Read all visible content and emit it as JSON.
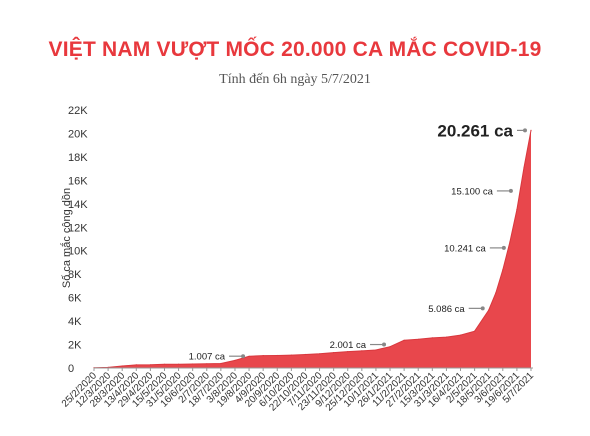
{
  "header": {
    "title": "VIỆT NAM VƯỢT MỐC 20.000 CA MẮC COVID-19",
    "subtitle": "Tính đến 6h ngày 5/7/2021"
  },
  "chart_data": {
    "type": "area",
    "title": "VIỆT NAM VƯỢT MỐC 20.000 CA MẮC COVID-19",
    "subtitle": "Tính đến 6h ngày 5/7/2021",
    "ylabel": "Số ca mắc cộng dồn",
    "xlabel": "",
    "ylim": [
      0,
      22000
    ],
    "y_ticks": [
      0,
      2000,
      4000,
      6000,
      8000,
      10000,
      12000,
      14000,
      16000,
      18000,
      20000,
      22000
    ],
    "y_tick_labels": [
      "0",
      "2K",
      "4K",
      "6K",
      "8K",
      "10K",
      "12K",
      "14K",
      "16K",
      "18K",
      "20K",
      "22K"
    ],
    "grid": false,
    "color": "#e8474c",
    "x_tick_labels": [
      "25/2/2020",
      "12/3/2020",
      "28/3/2020",
      "13/4/2020",
      "29/4/2020",
      "15/5/2020",
      "31/5/2020",
      "16/6/2020",
      "2/7/2020",
      "18/7/2020",
      "3/8/2020",
      "19/8/2020",
      "4/9/2020",
      "20/9/2020",
      "6/10/2020",
      "22/10/2020",
      "7/11/2020",
      "23/11/2020",
      "9/12/2020",
      "25/12/2020",
      "10/1/2021",
      "26/1/2021",
      "11/2/2021",
      "27/2/2021",
      "15/3/2021",
      "31/3/2021",
      "16/4/2021",
      "2/5/2021",
      "18/5/2021",
      "3/6/2021",
      "19/6/2021",
      "5/7/2021"
    ],
    "x": [
      "25/2/2020",
      "12/3/2020",
      "28/3/2020",
      "13/4/2020",
      "29/4/2020",
      "15/5/2020",
      "31/5/2020",
      "16/6/2020",
      "2/7/2020",
      "18/7/2020",
      "3/8/2020",
      "19/8/2020",
      "4/9/2020",
      "20/9/2020",
      "6/10/2020",
      "22/10/2020",
      "7/11/2020",
      "23/11/2020",
      "9/12/2020",
      "25/12/2020",
      "10/1/2021",
      "26/1/2021",
      "11/2/2021",
      "27/2/2021",
      "15/3/2021",
      "31/3/2021",
      "16/4/2021",
      "2/5/2021",
      "18/5/2021",
      "26/5/2021",
      "3/6/2021",
      "11/6/2021",
      "19/6/2021",
      "27/6/2021",
      "5/7/2021"
    ],
    "values": [
      16,
      50,
      174,
      266,
      270,
      318,
      328,
      342,
      355,
      381,
      652,
      994,
      1054,
      1068,
      1097,
      1148,
      1214,
      1312,
      1395,
      1454,
      1531,
      1817,
      2360,
      2448,
      2567,
      2631,
      2805,
      3137,
      4940,
      6396,
      8364,
      10741,
      13505,
      17094,
      20261
    ],
    "annotations": [
      {
        "label": "1.007 ca",
        "x": "19/8/2020",
        "value": 1007
      },
      {
        "label": "2.001 ca",
        "x": "26/1/2021",
        "value": 2001
      },
      {
        "label": "5.086 ca",
        "x": "18/5/2021",
        "value": 5086
      },
      {
        "label": "10.241 ca",
        "x": "11/6/2021",
        "value": 10241
      },
      {
        "label": "15.100 ca",
        "x": "19/6/2021",
        "value": 15100
      },
      {
        "label": "20.261 ca",
        "x": "5/7/2021",
        "value": 20261
      }
    ]
  }
}
